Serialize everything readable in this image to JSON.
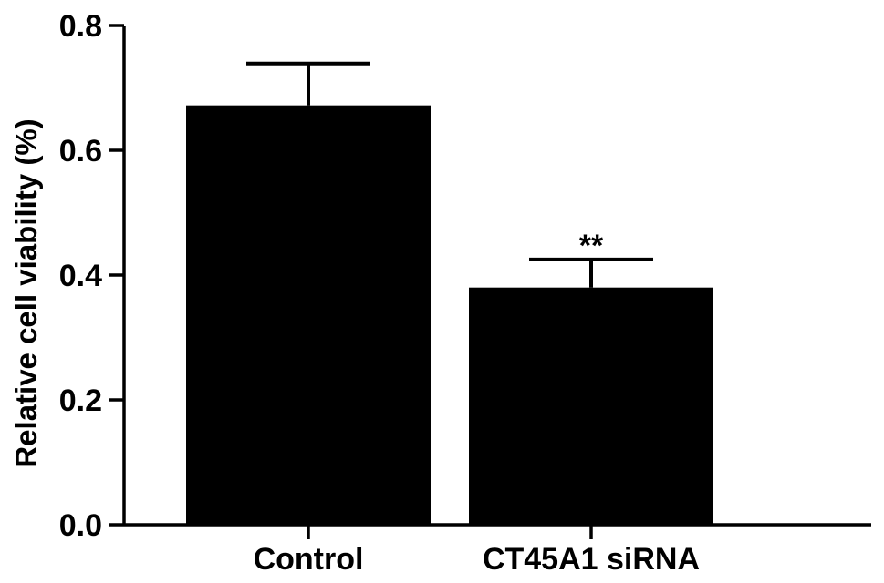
{
  "chart_data": {
    "type": "bar",
    "title": "",
    "xlabel": "",
    "ylabel": "Relative cell viability (%)",
    "categories": [
      "Control",
      "CT45A1 siRNA"
    ],
    "values": [
      0.672,
      0.38
    ],
    "errors": [
      0.067,
      0.045
    ],
    "annotations": [
      "",
      "**"
    ],
    "ylim": [
      0.0,
      0.8
    ],
    "yticks": [
      0.0,
      0.2,
      0.4,
      0.6,
      0.8
    ],
    "ytick_labels": [
      "0.0",
      "0.2",
      "0.4",
      "0.6",
      "0.8"
    ],
    "grid": false,
    "bar_color": "#000000"
  }
}
